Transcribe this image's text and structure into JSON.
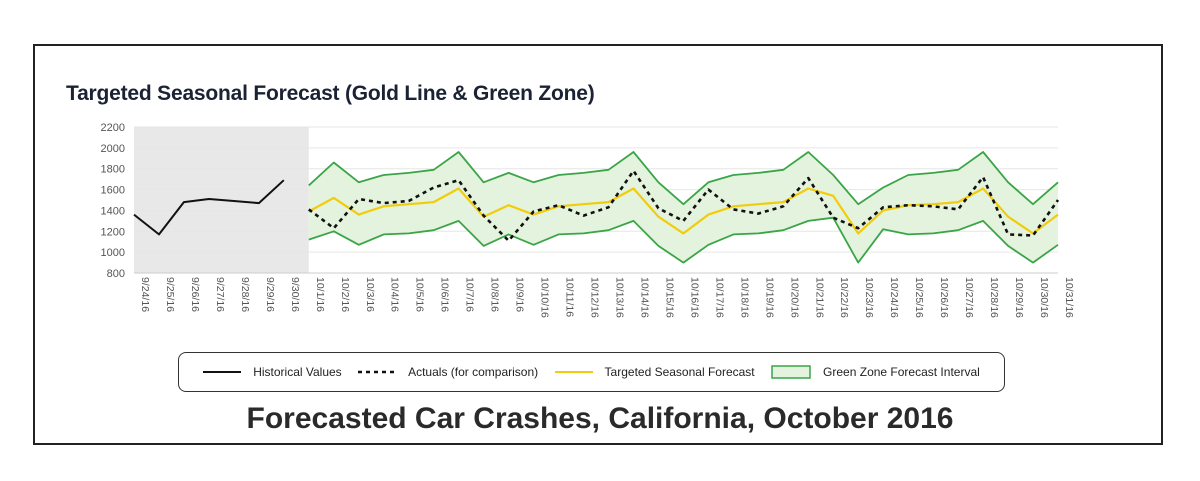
{
  "chart_data": {
    "type": "line",
    "title": "Targeted Seasonal Forecast (Gold Line & Green Zone)",
    "xlabel": "",
    "ylabel": "",
    "ylim": [
      800,
      2200
    ],
    "yticks": [
      800,
      1000,
      1200,
      1400,
      1600,
      1800,
      2000,
      2200
    ],
    "x": [
      "9/24/16",
      "9/25/16",
      "9/26/16",
      "9/27/16",
      "9/28/16",
      "9/29/16",
      "9/30/16",
      "10/1/16",
      "10/2/16",
      "10/3/16",
      "10/4/16",
      "10/5/16",
      "10/6/16",
      "10/7/16",
      "10/8/16",
      "10/9/16",
      "10/10/16",
      "10/11/16",
      "10/12/16",
      "10/13/16",
      "10/14/16",
      "10/15/16",
      "10/16/16",
      "10/17/16",
      "10/18/16",
      "10/19/16",
      "10/20/16",
      "10/21/16",
      "10/22/16",
      "10/23/16",
      "10/24/16",
      "10/25/16",
      "10/26/16",
      "10/27/16",
      "10/28/16",
      "10/29/16",
      "10/30/16",
      "10/31/16"
    ],
    "historical_region": {
      "start": "9/24/16",
      "end": "10/1/16",
      "shaded": true
    },
    "grid": true,
    "legend_position": "bottom",
    "series": [
      {
        "name": "Historical Values",
        "style": "solid",
        "color": "#111111",
        "x": [
          "9/24/16",
          "9/25/16",
          "9/26/16",
          "9/27/16",
          "9/28/16",
          "9/29/16",
          "9/30/16"
        ],
        "values": [
          1360,
          1170,
          1480,
          1510,
          1490,
          1470,
          1690
        ]
      },
      {
        "name": "Actuals (for comparison)",
        "style": "dashed",
        "color": "#111111",
        "x": [
          "10/1/16",
          "10/2/16",
          "10/3/16",
          "10/4/16",
          "10/5/16",
          "10/6/16",
          "10/7/16",
          "10/8/16",
          "10/9/16",
          "10/10/16",
          "10/11/16",
          "10/12/16",
          "10/13/16",
          "10/14/16",
          "10/15/16",
          "10/16/16",
          "10/17/16",
          "10/18/16",
          "10/19/16",
          "10/20/16",
          "10/21/16",
          "10/22/16",
          "10/23/16",
          "10/24/16",
          "10/25/16",
          "10/26/16",
          "10/27/16",
          "10/28/16",
          "10/29/16",
          "10/30/16",
          "10/31/16"
        ],
        "values": [
          1410,
          1230,
          1510,
          1470,
          1490,
          1620,
          1690,
          1350,
          1110,
          1390,
          1450,
          1350,
          1430,
          1780,
          1420,
          1300,
          1600,
          1410,
          1370,
          1440,
          1710,
          1330,
          1230,
          1430,
          1450,
          1440,
          1410,
          1720,
          1170,
          1160,
          1500
        ]
      },
      {
        "name": "Targeted Seasonal Forecast",
        "style": "solid",
        "color": "#f2cc0c",
        "x": [
          "10/1/16",
          "10/2/16",
          "10/3/16",
          "10/4/16",
          "10/5/16",
          "10/6/16",
          "10/7/16",
          "10/8/16",
          "10/9/16",
          "10/10/16",
          "10/11/16",
          "10/12/16",
          "10/13/16",
          "10/14/16",
          "10/15/16",
          "10/16/16",
          "10/17/16",
          "10/18/16",
          "10/19/16",
          "10/20/16",
          "10/21/16",
          "10/22/16",
          "10/23/16",
          "10/24/16",
          "10/25/16",
          "10/26/16",
          "10/27/16",
          "10/28/16",
          "10/29/16",
          "10/30/16",
          "10/31/16"
        ],
        "values": [
          1390,
          1520,
          1360,
          1440,
          1460,
          1480,
          1610,
          1340,
          1450,
          1360,
          1440,
          1460,
          1480,
          1610,
          1340,
          1180,
          1360,
          1440,
          1460,
          1480,
          1610,
          1540,
          1180,
          1400,
          1450,
          1460,
          1480,
          1610,
          1340,
          1180,
          1360
        ]
      },
      {
        "name": "Green Zone Forecast Interval",
        "style": "band",
        "color": "#3aa547",
        "fill": "#e4f3dd",
        "x": [
          "10/1/16",
          "10/2/16",
          "10/3/16",
          "10/4/16",
          "10/5/16",
          "10/6/16",
          "10/7/16",
          "10/8/16",
          "10/9/16",
          "10/10/16",
          "10/11/16",
          "10/12/16",
          "10/13/16",
          "10/14/16",
          "10/15/16",
          "10/16/16",
          "10/17/16",
          "10/18/16",
          "10/19/16",
          "10/20/16",
          "10/21/16",
          "10/22/16",
          "10/23/16",
          "10/24/16",
          "10/25/16",
          "10/26/16",
          "10/27/16",
          "10/28/16",
          "10/29/16",
          "10/30/16",
          "10/31/16"
        ],
        "upper": [
          1640,
          1860,
          1670,
          1740,
          1760,
          1790,
          1960,
          1670,
          1760,
          1670,
          1740,
          1760,
          1790,
          1960,
          1670,
          1460,
          1670,
          1740,
          1760,
          1790,
          1960,
          1740,
          1460,
          1620,
          1740,
          1760,
          1790,
          1960,
          1670,
          1460,
          1670
        ],
        "lower": [
          1120,
          1200,
          1070,
          1170,
          1180,
          1210,
          1300,
          1060,
          1170,
          1070,
          1170,
          1180,
          1210,
          1300,
          1060,
          900,
          1070,
          1170,
          1180,
          1210,
          1300,
          1330,
          900,
          1220,
          1170,
          1180,
          1210,
          1300,
          1060,
          900,
          1070
        ]
      }
    ]
  },
  "legend": {
    "items": [
      "Historical Values",
      "Actuals (for comparison)",
      "Targeted Seasonal Forecast",
      "Green Zone Forecast Interval"
    ]
  },
  "caption": "Forecasted Car Crashes, California, October 2016",
  "colors": {
    "historical_shade": "#e8e8e8",
    "grid": "#e6e6e6",
    "axis_text": "#555555",
    "title": "#1a2233"
  }
}
